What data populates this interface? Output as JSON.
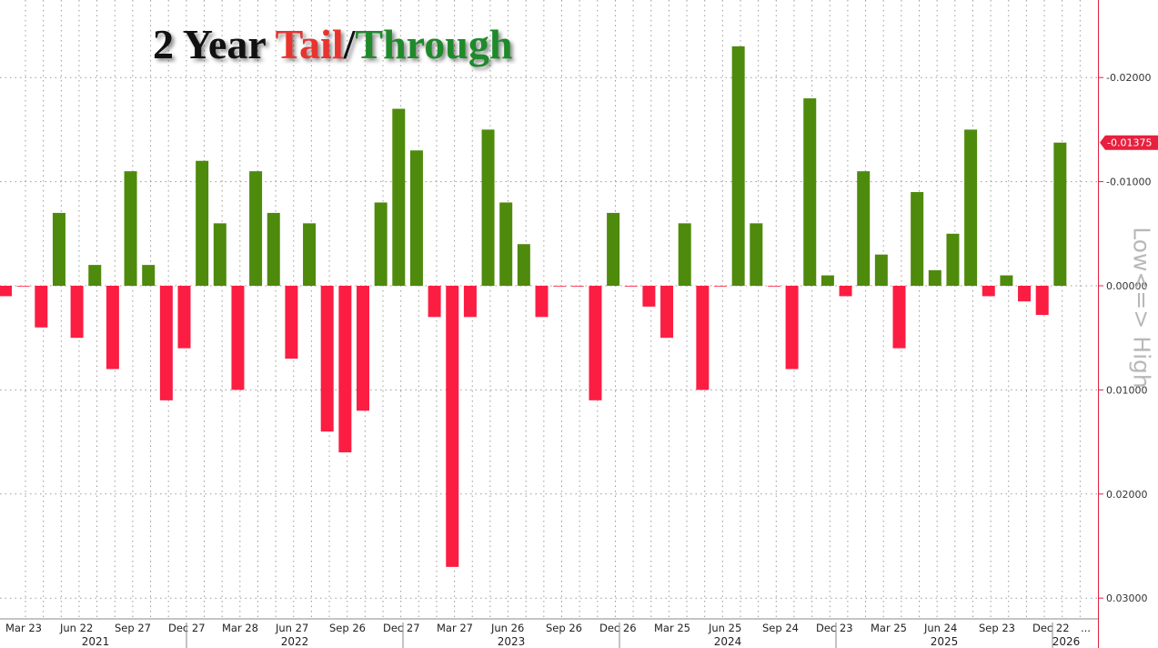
{
  "title": {
    "prefix": "2 Year",
    "tail": "Tail",
    "slash": "/",
    "through": "Through"
  },
  "chart_data": {
    "type": "bar",
    "title": "2 Year Tail/Through",
    "ylabel": "Low<=> High",
    "y_axis_side": "right",
    "y_inverted": true,
    "ylim": [
      0.03,
      -0.025
    ],
    "y_ticks": [
      "-0.02000",
      "-0.01000",
      "0.00000",
      "0.01000",
      "0.02000",
      "0.03000"
    ],
    "y_tick_values": [
      -0.02,
      -0.01,
      0.0,
      0.01,
      0.02,
      0.03
    ],
    "last_value_label": "-0.01375",
    "colors": {
      "through": "#4e8a0c",
      "tail": "#fc1d43",
      "last_label_bg": "#e8203f"
    },
    "x_tick_labels": [
      "Mar 23",
      "Jun 22",
      "Sep 27",
      "Dec 27",
      "Mar 28",
      "Jun 27",
      "Sep 26",
      "Dec 27",
      "Mar 27",
      "Jun 26",
      "Sep 26",
      "Dec 26",
      "Mar 25",
      "Jun 25",
      "Sep 24",
      "Dec 23",
      "Mar 25",
      "Jun 24",
      "Sep 23",
      "Dec 22"
    ],
    "years": [
      "2021",
      "2022",
      "2023",
      "2024",
      "2025",
      "2026"
    ],
    "values": [
      0.001,
      0.0,
      0.004,
      -0.007,
      0.005,
      -0.002,
      0.008,
      -0.011,
      -0.002,
      0.011,
      0.006,
      -0.012,
      -0.006,
      0.01,
      -0.011,
      -0.007,
      0.007,
      -0.006,
      0.014,
      0.016,
      0.012,
      -0.008,
      -0.017,
      -0.013,
      0.003,
      0.027,
      0.003,
      -0.015,
      -0.008,
      -0.004,
      0.003,
      0.0,
      0.0,
      0.011,
      -0.007,
      0.0,
      0.002,
      0.005,
      -0.006,
      0.01,
      0.0,
      -0.023,
      -0.006,
      0.0,
      0.008,
      -0.018,
      -0.001,
      0.001,
      -0.011,
      -0.003,
      0.006,
      -0.009,
      -0.0015,
      -0.005,
      -0.015,
      0.001,
      -0.001,
      0.0015,
      0.0028,
      -0.01375
    ]
  }
}
